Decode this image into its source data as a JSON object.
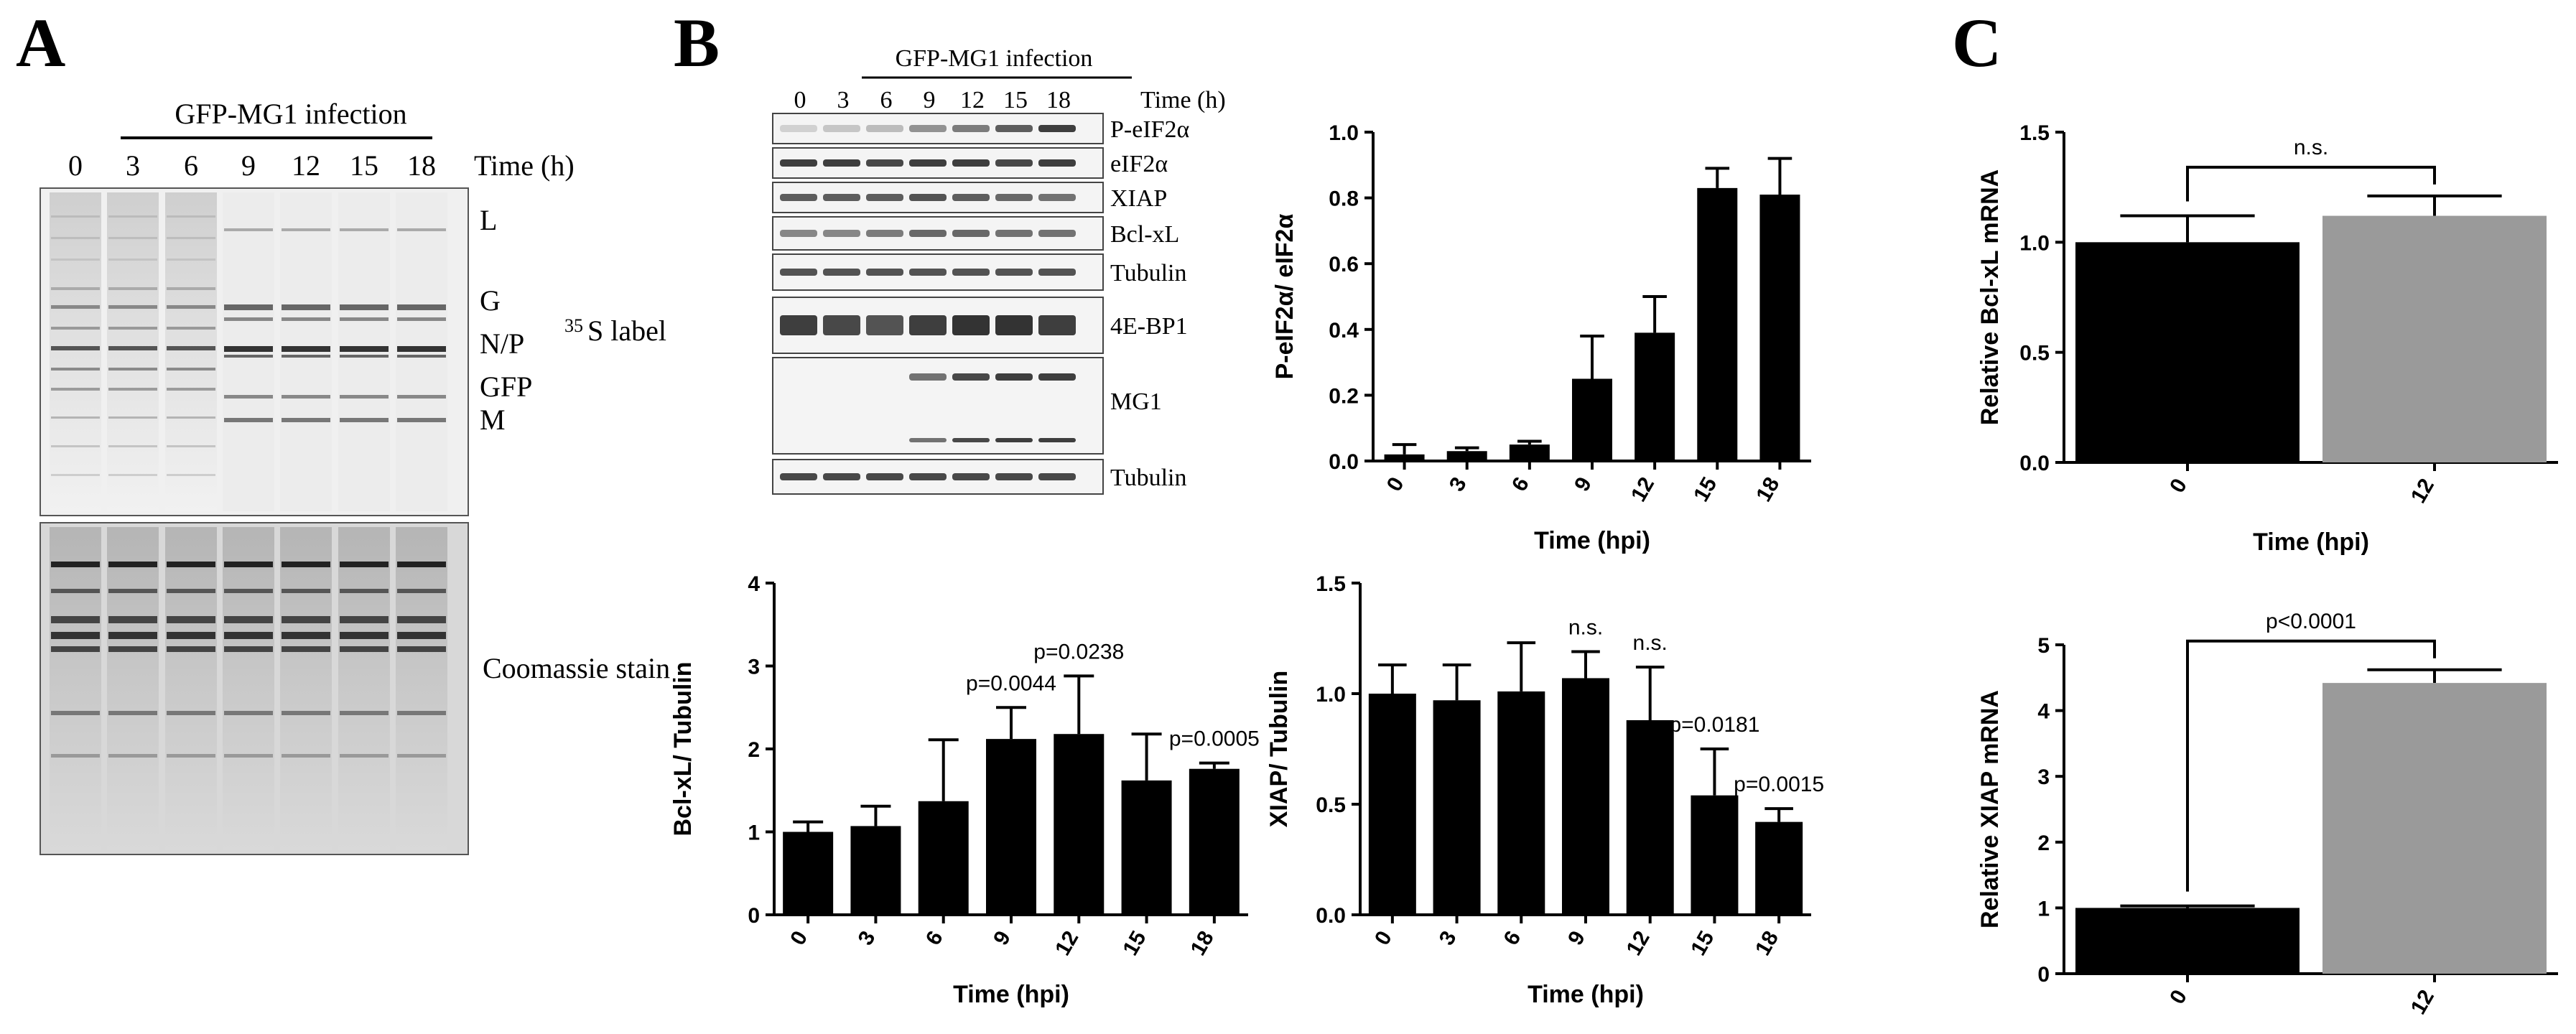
{
  "panels": {
    "a": "A",
    "b": "B",
    "c": "C"
  },
  "colors": {
    "bar_black": "#000000",
    "bar_gray": "#9a9a9a",
    "axis": "#000000"
  },
  "panel_a": {
    "infection_label": "GFP-MG1 infection",
    "timepoints": [
      "0",
      "3",
      "6",
      "9",
      "12",
      "15",
      "18"
    ],
    "time_label": "Time (h)",
    "bands": [
      "L",
      "G",
      "N/P",
      "GFP",
      "M"
    ],
    "label_35s_sup": "35",
    "label_35s": "S label",
    "coomassie_label": "Coomassie stain"
  },
  "panel_b_blot": {
    "infection_label": "GFP-MG1 infection",
    "timepoints": [
      "0",
      "3",
      "6",
      "9",
      "12",
      "15",
      "18"
    ],
    "time_label": "Time (h)",
    "rows": [
      "P-eIF2α",
      "eIF2α",
      "XIAP",
      "Bcl-xL",
      "Tubulin",
      "4E-BP1",
      "MG1",
      "Tubulin"
    ]
  },
  "chart_data": [
    {
      "id": "peif2a",
      "type": "bar",
      "categories": [
        "0",
        "3",
        "6",
        "9",
        "12",
        "15",
        "18"
      ],
      "values": [
        0.02,
        0.03,
        0.05,
        0.25,
        0.39,
        0.83,
        0.81
      ],
      "errors": [
        0.03,
        0.01,
        0.01,
        0.13,
        0.11,
        0.06,
        0.11
      ],
      "xlabel": "Time (hpi)",
      "ylabel": "P-eIF2α/ eIF2α",
      "ylim": [
        0,
        1.0
      ],
      "yticks": [
        "0.0",
        "0.2",
        "0.4",
        "0.6",
        "0.8",
        "1.0"
      ]
    },
    {
      "id": "bclxl",
      "type": "bar",
      "categories": [
        "0",
        "3",
        "6",
        "9",
        "12",
        "15",
        "18"
      ],
      "values": [
        1.0,
        1.07,
        1.37,
        2.12,
        2.18,
        1.62,
        1.76
      ],
      "errors": [
        0.12,
        0.24,
        0.74,
        0.38,
        0.7,
        0.56,
        0.07
      ],
      "xlabel": "Time (hpi)",
      "ylabel": "Bcl-xL/ Tubulin",
      "ylim": [
        0,
        4
      ],
      "yticks": [
        "0",
        "1",
        "2",
        "3",
        "4"
      ],
      "annotations": [
        {
          "category": "9",
          "text": "p=0.0044"
        },
        {
          "category": "12",
          "text": "p=0.0238"
        },
        {
          "category": "18",
          "text": "p=0.0005"
        }
      ]
    },
    {
      "id": "xiap",
      "type": "bar",
      "categories": [
        "0",
        "3",
        "6",
        "9",
        "12",
        "15",
        "18"
      ],
      "values": [
        1.0,
        0.97,
        1.01,
        1.07,
        0.88,
        0.54,
        0.42
      ],
      "errors": [
        0.13,
        0.16,
        0.22,
        0.12,
        0.24,
        0.21,
        0.06
      ],
      "xlabel": "Time (hpi)",
      "ylabel": "XIAP/ Tubulin",
      "ylim": [
        0,
        1.5
      ],
      "yticks": [
        "0.0",
        "0.5",
        "1.0",
        "1.5"
      ],
      "annotations": [
        {
          "category": "9",
          "text": "n.s."
        },
        {
          "category": "12",
          "text": "n.s."
        },
        {
          "category": "15",
          "text": "p=0.0181"
        },
        {
          "category": "18",
          "text": "p=0.0015"
        }
      ]
    },
    {
      "id": "bclxl_mrna",
      "type": "bar",
      "categories": [
        "0",
        "12"
      ],
      "values": [
        1.0,
        1.12
      ],
      "errors": [
        0.12,
        0.09
      ],
      "bar_colors": [
        "#000000",
        "#9a9a9a"
      ],
      "xlabel": "Time (hpi)",
      "ylabel": "Relative Bcl-xL mRNA",
      "ylim": [
        0,
        1.5
      ],
      "yticks": [
        "0.0",
        "0.5",
        "1.0",
        "1.5"
      ],
      "significance": "n.s."
    },
    {
      "id": "xiap_mrna",
      "type": "bar",
      "categories": [
        "0",
        "12"
      ],
      "values": [
        1.0,
        4.42
      ],
      "errors": [
        0.03,
        0.2
      ],
      "bar_colors": [
        "#000000",
        "#9a9a9a"
      ],
      "xlabel": "",
      "ylabel": "Relative XIAP mRNA",
      "ylim": [
        0,
        5
      ],
      "yticks": [
        "0",
        "1",
        "2",
        "3",
        "4",
        "5"
      ],
      "significance": "p<0.0001"
    }
  ]
}
